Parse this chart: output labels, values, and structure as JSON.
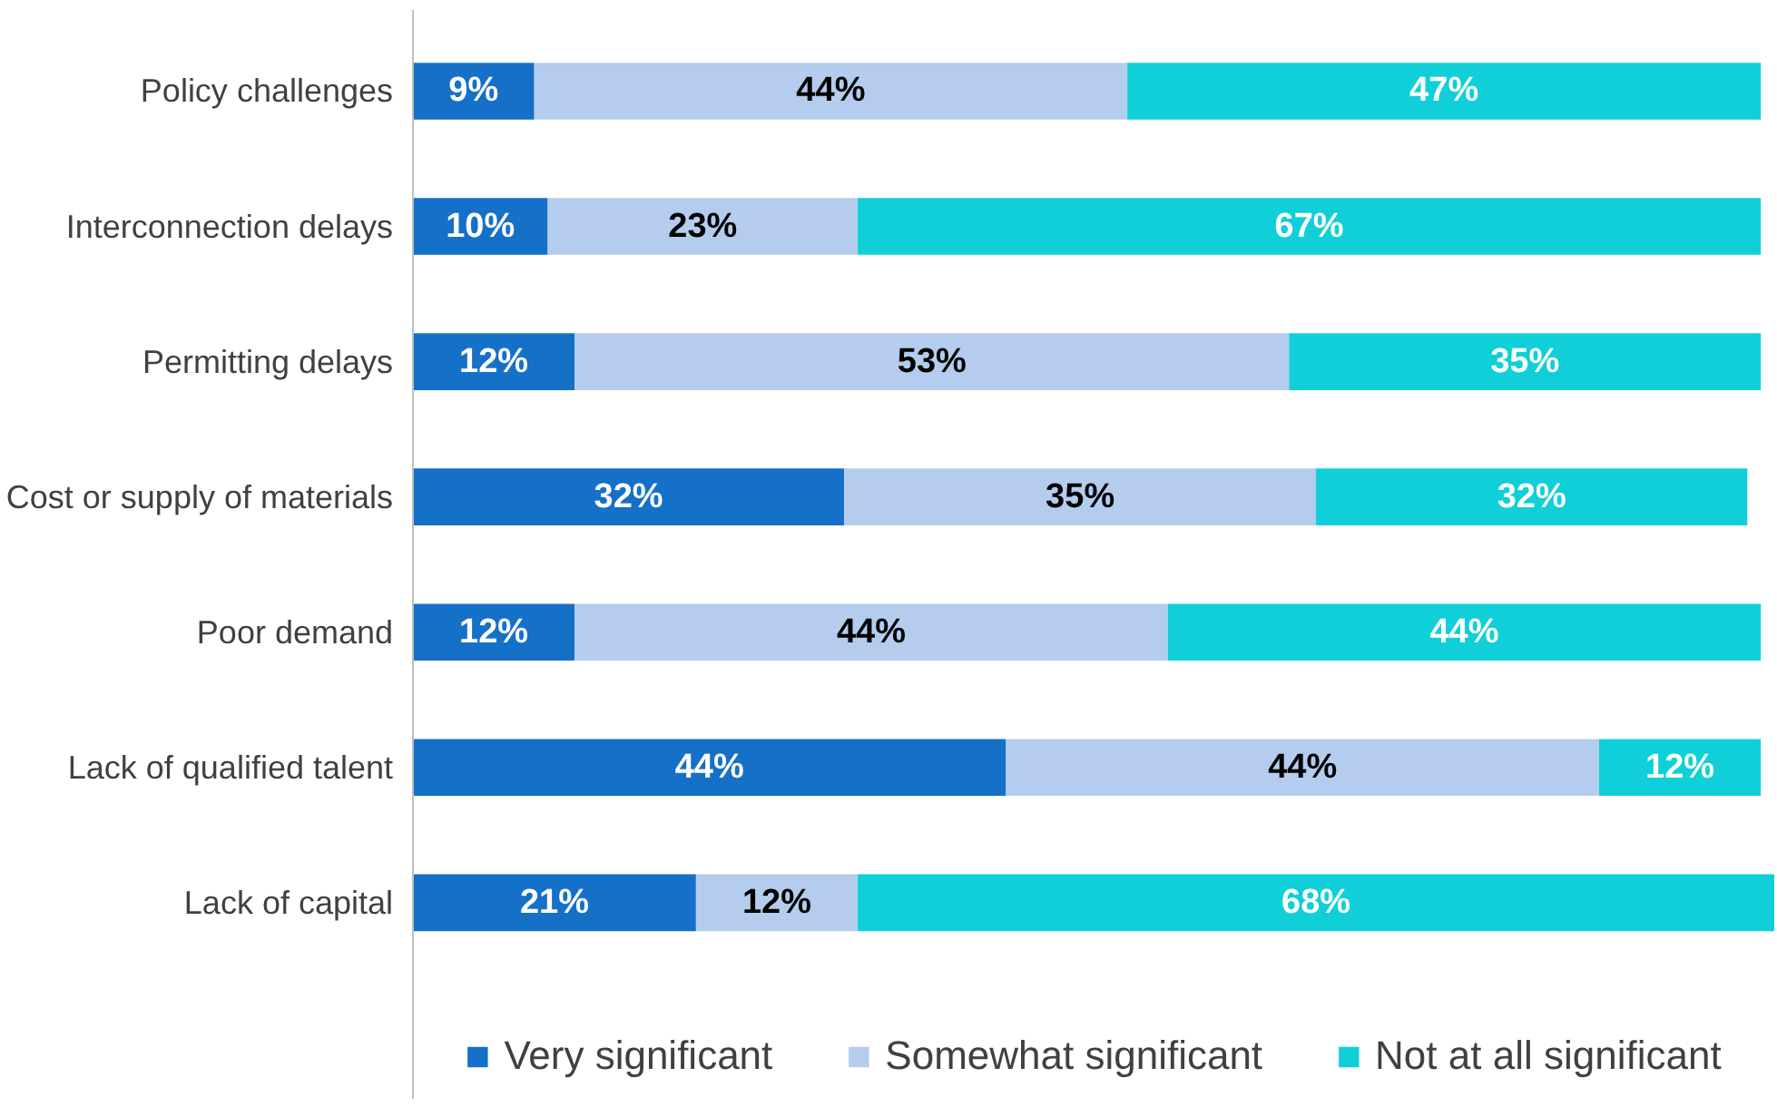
{
  "chart_data": {
    "type": "bar",
    "orientation": "horizontal",
    "stacked": true,
    "categories": [
      "Policy challenges",
      "Interconnection delays",
      "Permitting delays",
      "Cost or supply of materials",
      "Poor demand",
      "Lack of qualified talent",
      "Lack of capital"
    ],
    "xlim": [
      0,
      101
    ],
    "tick_labels": "y",
    "grid": false,
    "legend": "bottom",
    "series": [
      {
        "name": "Very significant",
        "color": "#1570c8",
        "values": [
          9,
          10,
          12,
          32,
          12,
          44,
          21
        ],
        "value_labels": [
          "9%",
          "10%",
          "12%",
          "32%",
          "12%",
          "44%",
          "21%"
        ]
      },
      {
        "name": "Somewhat significant",
        "color": "#b4cdee",
        "values": [
          44,
          23,
          53,
          35,
          44,
          44,
          12
        ],
        "value_labels": [
          "44%",
          "23%",
          "53%",
          "35%",
          "44%",
          "44%",
          "12%"
        ]
      },
      {
        "name": "Not at all significant",
        "color": "#10cfd8",
        "values": [
          47,
          67,
          35,
          32,
          44,
          12,
          68
        ],
        "value_labels": [
          "47%",
          "67%",
          "35%",
          "32%",
          "44%",
          "12%",
          "68%"
        ]
      }
    ]
  }
}
